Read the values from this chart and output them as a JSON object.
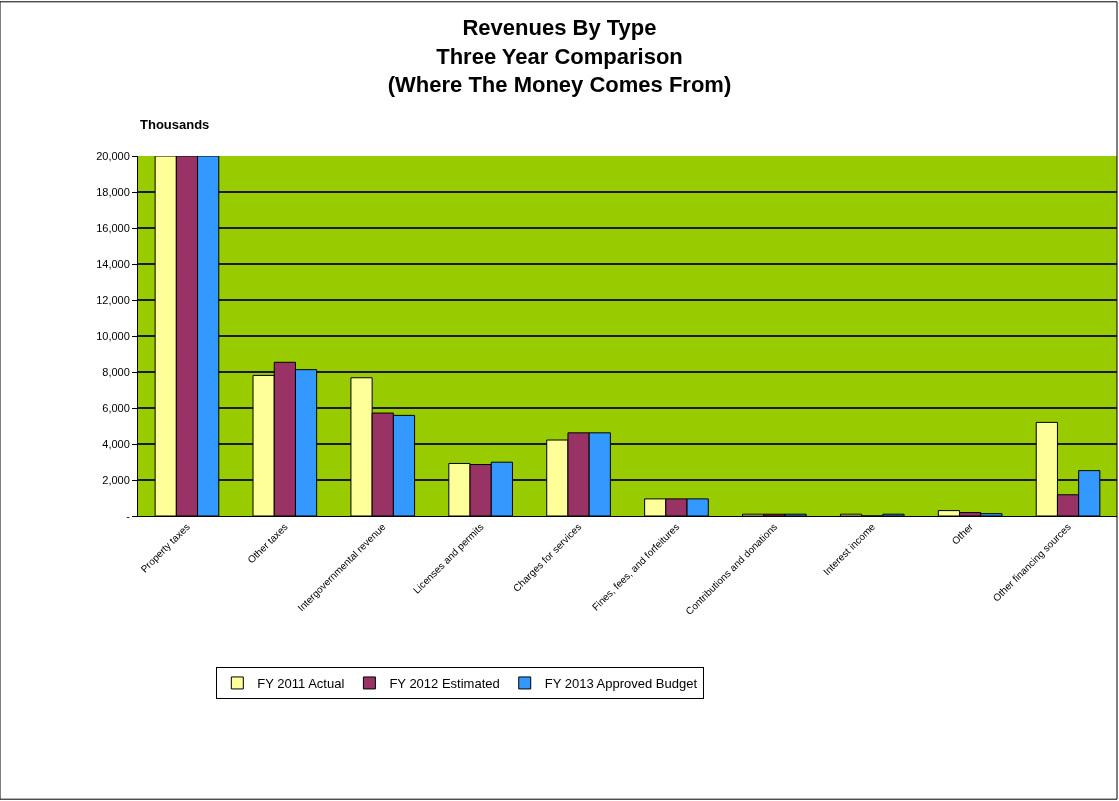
{
  "chart_data": {
    "type": "bar",
    "title": "Revenues By Type\nThree Year Comparison\n(Where The Money Comes From)",
    "ylabel": "Thousands",
    "categories": [
      "Property taxes",
      "Other taxes",
      "Intergovernmental revenue",
      "Licenses and permits",
      "Charges for services",
      "Fines, fees, and forfeitures",
      "Contributions and donations",
      "Interest income",
      "Other",
      "Other financing sources"
    ],
    "series": [
      {
        "name": "FY 2011 Actual",
        "color": "#ffff99",
        "values": [
          20000,
          7810,
          7680,
          2920,
          4220,
          950,
          100,
          100,
          300,
          5200
        ]
      },
      {
        "name": "FY 2012 Estimated",
        "color": "#993366",
        "values": [
          20000,
          8540,
          5720,
          2860,
          4620,
          950,
          100,
          0,
          190,
          1180
        ]
      },
      {
        "name": "FY 2013 Approved Budget",
        "color": "#3399ff",
        "values": [
          20000,
          8130,
          5590,
          2990,
          4620,
          950,
          100,
          100,
          130,
          2520
        ]
      }
    ],
    "ylim": [
      0,
      20000
    ],
    "yticks": [
      {
        "value": 0,
        "label": "-"
      },
      {
        "value": 2000,
        "label": "2,000"
      },
      {
        "value": 4000,
        "label": "4,000"
      },
      {
        "value": 6000,
        "label": "6,000"
      },
      {
        "value": 8000,
        "label": "8,000"
      },
      {
        "value": 10000,
        "label": "10,000"
      },
      {
        "value": 12000,
        "label": "12,000"
      },
      {
        "value": 14000,
        "label": "14,000"
      },
      {
        "value": 16000,
        "label": "16,000"
      },
      {
        "value": 18000,
        "label": "18,000"
      },
      {
        "value": 20000,
        "label": "20,000"
      }
    ],
    "grid": "y",
    "legend": "bottom"
  }
}
